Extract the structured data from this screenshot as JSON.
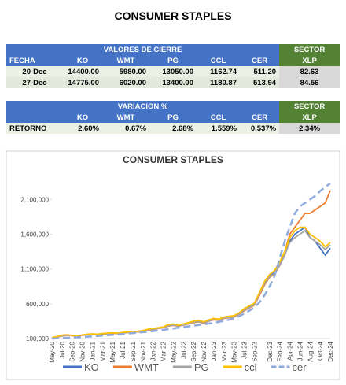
{
  "header": {
    "title": "CONSUMER STAPLES"
  },
  "table1": {
    "title": "VALORES DE CIERRE",
    "sector": "SECTOR",
    "columns": [
      "FECHA",
      "KO",
      "WMT",
      "PG",
      "CCL",
      "CER",
      "XLP"
    ],
    "rows": [
      [
        "20-Dec",
        "14400.00",
        "5980.00",
        "13050.00",
        "1162.74",
        "511.20",
        "82.63"
      ],
      [
        "27-Dec",
        "14775.00",
        "6020.00",
        "13400.00",
        "1180.87",
        "513.94",
        "84.56"
      ]
    ]
  },
  "table2": {
    "title": "VARIACION %",
    "sector": "SECTOR",
    "columns": [
      "KO",
      "WMT",
      "PG",
      "CCL",
      "CER",
      "XLP"
    ],
    "row": {
      "label": "RETORNO",
      "cells": [
        "2.60%",
        "0.67%",
        "2.68%",
        "1.559%",
        "0.537%",
        "2.34%"
      ]
    }
  },
  "chart_data": {
    "type": "line",
    "title": "CONSUMER STAPLES",
    "categories": [
      "May-20",
      null,
      "Jul-20",
      null,
      "Sep-20",
      null,
      "Nov-20",
      null,
      "Jan-21",
      null,
      "Mar-21",
      null,
      "May-21",
      null,
      "Jul-21",
      null,
      "Sep-21",
      null,
      "Nov-21",
      null,
      "Jan-22",
      null,
      "Mar-22",
      null,
      "May-22",
      null,
      "Jul-22",
      null,
      "Sep-22",
      null,
      "Nov-22",
      null,
      "Jan-23",
      null,
      "Mar-23",
      null,
      "May-23",
      null,
      "Jul-23",
      null,
      "Sep-23",
      null,
      null,
      "Dec-23",
      null,
      "Feb-24",
      null,
      "Apr-24",
      null,
      "Jun-24",
      null,
      "Aug-24",
      null,
      "Oct-24",
      null,
      "Dec-24"
    ],
    "ylim": [
      100000,
      2500000
    ],
    "yticks": [
      {
        "value": 100000,
        "label": "100,000"
      },
      {
        "value": 600000,
        "label": "600,000"
      },
      {
        "value": 1100000,
        "label": "1,100,000"
      },
      {
        "value": 1600000,
        "label": "1,600,000"
      },
      {
        "value": 2100000,
        "label": "2,100,000"
      }
    ],
    "series": [
      {
        "name": "KO",
        "color": "#4472c4",
        "values": [
          110000,
          125000,
          140000,
          150000,
          145000,
          140000,
          150000,
          160000,
          165000,
          160000,
          170000,
          175000,
          180000,
          175000,
          185000,
          190000,
          195000,
          200000,
          210000,
          230000,
          240000,
          250000,
          260000,
          290000,
          300000,
          280000,
          300000,
          320000,
          340000,
          350000,
          330000,
          360000,
          380000,
          370000,
          400000,
          410000,
          420000,
          460000,
          520000,
          560000,
          600000,
          750000,
          900000,
          1000000,
          1050000,
          1150000,
          1300000,
          1500000,
          1600000,
          1650000,
          1700000,
          1550000,
          1500000,
          1400000,
          1300000,
          1400000
        ]
      },
      {
        "name": "WMT",
        "color": "#ed7d31",
        "values": [
          105000,
          120000,
          135000,
          145000,
          140000,
          135000,
          145000,
          155000,
          160000,
          155000,
          165000,
          170000,
          175000,
          170000,
          180000,
          185000,
          190000,
          195000,
          205000,
          220000,
          230000,
          245000,
          255000,
          280000,
          290000,
          275000,
          295000,
          310000,
          330000,
          340000,
          320000,
          350000,
          370000,
          360000,
          390000,
          400000,
          410000,
          450000,
          500000,
          540000,
          580000,
          720000,
          870000,
          980000,
          1030000,
          1150000,
          1350000,
          1600000,
          1700000,
          1800000,
          1900000,
          1900000,
          1950000,
          2000000,
          2050000,
          2230000
        ]
      },
      {
        "name": "PG",
        "color": "#a5a5a5",
        "values": [
          108000,
          122000,
          138000,
          148000,
          143000,
          138000,
          148000,
          158000,
          162000,
          158000,
          168000,
          172000,
          178000,
          173000,
          182000,
          188000,
          193000,
          198000,
          208000,
          225000,
          235000,
          248000,
          258000,
          285000,
          295000,
          278000,
          298000,
          315000,
          335000,
          345000,
          325000,
          355000,
          375000,
          365000,
          395000,
          405000,
          415000,
          455000,
          510000,
          550000,
          590000,
          740000,
          890000,
          990000,
          1040000,
          1150000,
          1300000,
          1480000,
          1550000,
          1600000,
          1650000,
          1550000,
          1500000,
          1450000,
          1380000,
          1450000
        ]
      },
      {
        "name": "ccl",
        "color": "#ffc000",
        "values": [
          112000,
          130000,
          150000,
          155000,
          145000,
          140000,
          152000,
          162000,
          168000,
          162000,
          172000,
          178000,
          182000,
          178000,
          188000,
          195000,
          200000,
          205000,
          215000,
          235000,
          245000,
          255000,
          268000,
          300000,
          310000,
          290000,
          310000,
          330000,
          350000,
          360000,
          340000,
          370000,
          390000,
          380000,
          410000,
          420000,
          430000,
          470000,
          530000,
          570000,
          610000,
          760000,
          920000,
          1020000,
          1080000,
          1200000,
          1350000,
          1550000,
          1650000,
          1700000,
          1700000,
          1600000,
          1550000,
          1500000,
          1420000,
          1480000
        ]
      },
      {
        "name": "cer",
        "color": "#8faadc",
        "dashed": true,
        "values": [
          100000,
          103000,
          106000,
          110000,
          114000,
          118000,
          122000,
          127000,
          132000,
          137000,
          142000,
          148000,
          154000,
          160000,
          166000,
          172000,
          178000,
          185000,
          192000,
          200000,
          208000,
          216000,
          225000,
          235000,
          245000,
          255000,
          265000,
          275000,
          285000,
          295000,
          305000,
          315000,
          325000,
          340000,
          355000,
          370000,
          390000,
          420000,
          460000,
          500000,
          550000,
          620000,
          720000,
          850000,
          1000000,
          1250000,
          1500000,
          1700000,
          1900000,
          2000000,
          2050000,
          2100000,
          2150000,
          2220000,
          2280000,
          2330000
        ]
      }
    ],
    "legend": "bottom"
  }
}
